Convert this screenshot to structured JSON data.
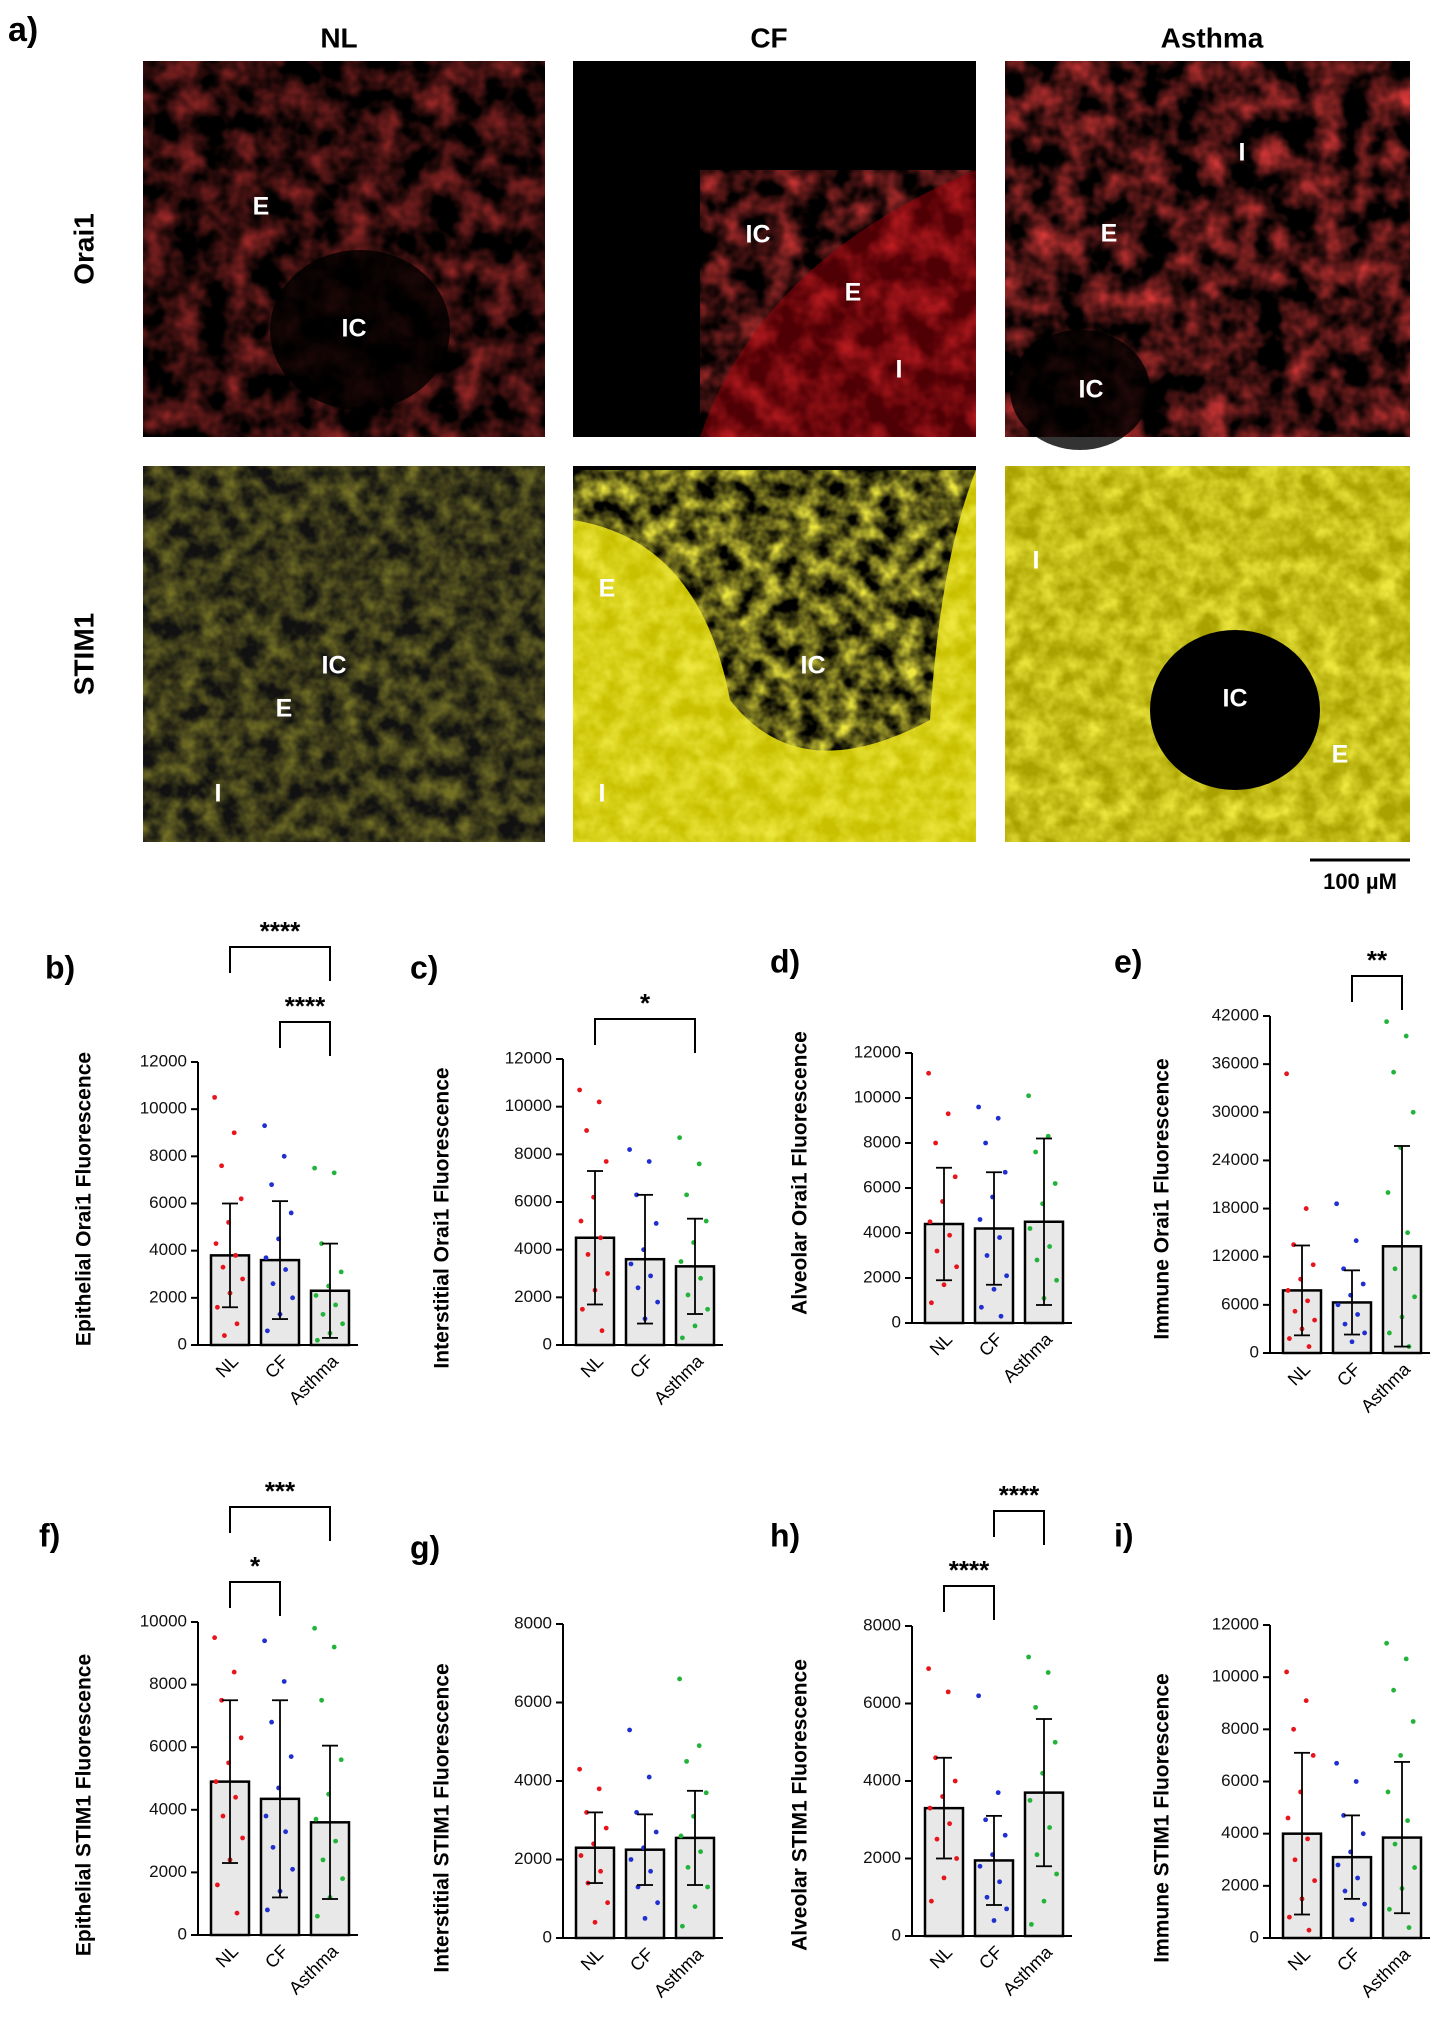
{
  "panel_a": {
    "label": "a)",
    "columns": [
      "NL",
      "CF",
      "Asthma"
    ],
    "rows": [
      "Orai1",
      "STIM1"
    ],
    "region_labels": [
      [
        [
          "E",
          "IC"
        ],
        [
          "IC",
          "E",
          "I"
        ],
        [
          "I",
          "E",
          "IC"
        ]
      ],
      [
        [
          "IC",
          "E",
          "I"
        ],
        [
          "E",
          "IC",
          "I"
        ],
        [
          "I",
          "IC",
          "E"
        ]
      ]
    ],
    "scale_bar": "100 µM"
  },
  "chart_data": [
    {
      "type": "bar",
      "label": "b)",
      "ylabel": "Epithelial Orai1 Fluorescence",
      "categories": [
        "NL",
        "CF",
        "Asthma"
      ],
      "colors": [
        "#e8141b",
        "#1f2fd0",
        "#22b33a"
      ],
      "values": [
        3800,
        3600,
        2300
      ],
      "errors": [
        2200,
        2500,
        2000
      ],
      "ylim": [
        0,
        12000
      ],
      "yticks": [
        0,
        2000,
        4000,
        6000,
        8000,
        10000,
        12000
      ],
      "points": [
        [
          10500,
          9000,
          7600,
          6200,
          5200,
          4300,
          3800,
          3300,
          2800,
          2200,
          1600,
          900,
          400
        ],
        [
          9300,
          8000,
          6800,
          5600,
          4500,
          3700,
          3200,
          2600,
          2000,
          1300,
          600
        ],
        [
          7500,
          7300,
          4300,
          3100,
          2500,
          2100,
          1700,
          1300,
          900,
          500,
          200
        ]
      ],
      "significance": [
        {
          "from": 0,
          "to": 2,
          "label": "****"
        },
        {
          "from": 1,
          "to": 2,
          "label": "****"
        }
      ]
    },
    {
      "type": "bar",
      "label": "c)",
      "ylabel": "Interstitial Orai1 Fluorescence",
      "categories": [
        "NL",
        "CF",
        "Asthma"
      ],
      "colors": [
        "#e8141b",
        "#1f2fd0",
        "#22b33a"
      ],
      "values": [
        4500,
        3600,
        3300
      ],
      "errors": [
        2800,
        2700,
        2000
      ],
      "ylim": [
        0,
        12000
      ],
      "yticks": [
        0,
        2000,
        4000,
        6000,
        8000,
        10000,
        12000
      ],
      "points": [
        [
          10700,
          10200,
          9000,
          7700,
          6200,
          5200,
          4500,
          3800,
          3000,
          2300,
          1500,
          600
        ],
        [
          8200,
          7700,
          6300,
          5100,
          4000,
          3400,
          2900,
          2400,
          1800,
          1100
        ],
        [
          8700,
          7600,
          6300,
          5200,
          4300,
          3500,
          2800,
          2100,
          1500,
          800,
          300
        ]
      ],
      "significance": [
        {
          "from": 0,
          "to": 2,
          "label": "*"
        }
      ]
    },
    {
      "type": "bar",
      "label": "d)",
      "ylabel": "Alveolar Orai1 Fluorescence",
      "categories": [
        "NL",
        "CF",
        "Asthma"
      ],
      "colors": [
        "#e8141b",
        "#1f2fd0",
        "#22b33a"
      ],
      "values": [
        4400,
        4200,
        4500
      ],
      "errors": [
        2500,
        2500,
        3700
      ],
      "ylim": [
        0,
        12000
      ],
      "yticks": [
        0,
        2000,
        4000,
        6000,
        8000,
        10000,
        12000
      ],
      "points": [
        [
          11100,
          9300,
          8000,
          6500,
          5400,
          4500,
          3900,
          3200,
          2500,
          1700,
          900
        ],
        [
          9600,
          9100,
          8000,
          6700,
          5600,
          4600,
          3800,
          3000,
          2100,
          1500,
          700,
          300
        ],
        [
          10100,
          8300,
          7600,
          6200,
          5300,
          4200,
          3400,
          2800,
          1900,
          1100
        ]
      ],
      "significance": []
    },
    {
      "type": "bar",
      "label": "e)",
      "ylabel": "Immune Orai1 Fluorescence",
      "categories": [
        "NL",
        "CF",
        "Asthma"
      ],
      "colors": [
        "#e8141b",
        "#1f2fd0",
        "#22b33a"
      ],
      "values": [
        7800,
        6300,
        13300
      ],
      "errors": [
        5600,
        4000,
        12500
      ],
      "ylim": [
        0,
        42000
      ],
      "yticks": [
        0,
        6000,
        12000,
        18000,
        24000,
        30000,
        36000,
        42000
      ],
      "points": [
        [
          34800,
          18000,
          13500,
          11000,
          9200,
          7800,
          6500,
          5200,
          4100,
          3000,
          1800,
          800
        ],
        [
          18600,
          14000,
          10500,
          8600,
          7200,
          6000,
          4800,
          3600,
          2500,
          1400
        ],
        [
          41300,
          39500,
          35000,
          30000,
          25600,
          20000,
          15000,
          10500,
          7000,
          4500,
          2500,
          800
        ]
      ],
      "significance": [
        {
          "from": 1,
          "to": 2,
          "label": "**"
        }
      ]
    },
    {
      "type": "bar",
      "label": "f)",
      "ylabel": "Epithelial STIM1 Fluorescence",
      "categories": [
        "NL",
        "CF",
        "Asthma"
      ],
      "colors": [
        "#e8141b",
        "#1f2fd0",
        "#22b33a"
      ],
      "values": [
        4900,
        4350,
        3600
      ],
      "errors": [
        2600,
        3150,
        2450
      ],
      "ylim": [
        0,
        10000
      ],
      "yticks": [
        0,
        2000,
        4000,
        6000,
        8000,
        10000
      ],
      "points": [
        [
          9500,
          8400,
          7500,
          6300,
          5500,
          4900,
          4400,
          3800,
          3100,
          2400,
          1600,
          700
        ],
        [
          9400,
          8100,
          6800,
          5700,
          4700,
          3800,
          3300,
          2800,
          2100,
          1400,
          800
        ],
        [
          9800,
          9200,
          7500,
          5600,
          4500,
          3700,
          3000,
          2400,
          1800,
          1200,
          600
        ]
      ],
      "significance": [
        {
          "from": 0,
          "to": 2,
          "label": "***"
        },
        {
          "from": 0,
          "to": 1,
          "label": "*"
        }
      ]
    },
    {
      "type": "bar",
      "label": "g)",
      "ylabel": "Interstitial STIM1 Fluorescence",
      "categories": [
        "NL",
        "CF",
        "Asthma"
      ],
      "colors": [
        "#e8141b",
        "#1f2fd0",
        "#22b33a"
      ],
      "values": [
        2300,
        2250,
        2550
      ],
      "errors": [
        900,
        900,
        1200
      ],
      "ylim": [
        0,
        8000
      ],
      "yticks": [
        0,
        2000,
        4000,
        6000,
        8000
      ],
      "points": [
        [
          4300,
          3800,
          3200,
          2800,
          2400,
          2100,
          1700,
          1400,
          900,
          400
        ],
        [
          5300,
          4100,
          3200,
          2700,
          2300,
          2000,
          1700,
          1300,
          900,
          500
        ],
        [
          6600,
          4900,
          4500,
          3700,
          3100,
          2600,
          2200,
          1800,
          1300,
          800,
          300
        ]
      ],
      "significance": []
    },
    {
      "type": "bar",
      "label": "h)",
      "ylabel": "Alveolar STIM1 Fluorescence",
      "categories": [
        "NL",
        "CF",
        "Asthma"
      ],
      "colors": [
        "#e8141b",
        "#1f2fd0",
        "#22b33a"
      ],
      "values": [
        3300,
        1950,
        3700
      ],
      "errors": [
        1300,
        1150,
        1900
      ],
      "ylim": [
        0,
        8000
      ],
      "yticks": [
        0,
        2000,
        4000,
        6000,
        8000
      ],
      "points": [
        [
          6900,
          6300,
          4600,
          4000,
          3600,
          3300,
          2900,
          2500,
          2000,
          1500,
          900
        ],
        [
          6200,
          3700,
          3000,
          2600,
          2100,
          1800,
          1400,
          1000,
          700,
          400
        ],
        [
          7200,
          6800,
          5900,
          5000,
          4200,
          3500,
          2800,
          2100,
          1600,
          900,
          300
        ]
      ],
      "significance": [
        {
          "from": 1,
          "to": 2,
          "label": "****"
        },
        {
          "from": 0,
          "to": 1,
          "label": "****"
        }
      ]
    },
    {
      "type": "bar",
      "label": "i)",
      "ylabel": "Immune STIM1 Fluorescence",
      "categories": [
        "NL",
        "CF",
        "Asthma"
      ],
      "colors": [
        "#e8141b",
        "#1f2fd0",
        "#22b33a"
      ],
      "values": [
        4000,
        3100,
        3850
      ],
      "errors": [
        3100,
        1600,
        2900
      ],
      "ylim": [
        0,
        12000
      ],
      "yticks": [
        0,
        2000,
        4000,
        6000,
        8000,
        10000,
        12000
      ],
      "points": [
        [
          10200,
          9100,
          8000,
          7000,
          5600,
          4600,
          3800,
          3000,
          2200,
          1500,
          800,
          300
        ],
        [
          6700,
          6000,
          4700,
          4000,
          3300,
          2800,
          2300,
          1800,
          1300,
          700
        ],
        [
          11300,
          10700,
          9500,
          8300,
          7000,
          5600,
          4500,
          3600,
          2700,
          1900,
          1100,
          400
        ]
      ],
      "significance": []
    }
  ]
}
